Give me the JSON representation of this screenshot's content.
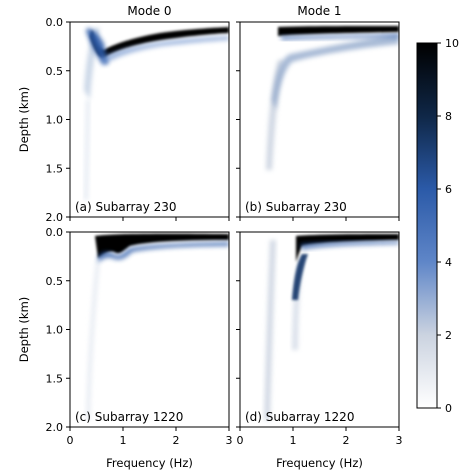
{
  "chart_data": {
    "type": "heatmap",
    "columns": [
      "Mode 0",
      "Mode 1"
    ],
    "xlabel": "Frequency (Hz)",
    "ylabel": "Depth (km)",
    "xlim": [
      0,
      3
    ],
    "ylim": [
      2.0,
      0.0
    ],
    "x_ticks": [
      "0",
      "1",
      "2",
      "3"
    ],
    "y_ticks": [
      "0.0",
      "0.5",
      "1.0",
      "1.5",
      "2.0"
    ],
    "colorbar": {
      "range": [
        0,
        10
      ],
      "ticks": [
        "0",
        "2",
        "4",
        "6",
        "8",
        "10"
      ],
      "colormap": [
        "#ffffff",
        "#cbd3e0",
        "#5f86c8",
        "#2b5aa8",
        "#0f2747",
        "#000000"
      ]
    },
    "panels": [
      {
        "label": "(a) Subarray 230",
        "column": 0,
        "features": [
          {
            "freq_start": 0.55,
            "freq_end": 3.0,
            "depth_start": 0.25,
            "depth_end": 0.07,
            "peak": 10
          },
          {
            "freq": 0.62,
            "depth_min": 0.05,
            "depth_max": 1.7,
            "peak": 6
          }
        ]
      },
      {
        "label": "(b) Subarray 230",
        "column": 1,
        "features": [
          {
            "freq_start": 0.9,
            "freq_end": 3.0,
            "depth_start": 0.08,
            "depth_end": 0.04,
            "peak": 10
          },
          {
            "freq_start": 0.6,
            "freq_end": 3.0,
            "depth_start": 0.35,
            "depth_end": 0.15,
            "peak": 4
          },
          {
            "freq": 0.58,
            "depth_min": 0.2,
            "depth_max": 1.4,
            "peak": 4
          }
        ]
      },
      {
        "label": "(c) Subarray 1220",
        "column": 0,
        "features": [
          {
            "freq_start": 0.55,
            "freq_end": 3.0,
            "depth_start": 0.12,
            "depth_end": 0.07,
            "peak": 10
          },
          {
            "freq": 0.58,
            "depth_min": 0.1,
            "depth_max": 1.8,
            "peak": 2
          }
        ]
      },
      {
        "label": "(d) Subarray 1220",
        "column": 1,
        "features": [
          {
            "freq_start": 1.0,
            "freq_end": 3.0,
            "depth_start": 0.1,
            "depth_end": 0.05,
            "peak": 10
          },
          {
            "freq": 1.0,
            "depth_min": 0.25,
            "depth_max": 1.2,
            "peak": 7
          },
          {
            "freq": 0.55,
            "depth_min": 0.1,
            "depth_max": 1.9,
            "peak": 3
          }
        ]
      }
    ]
  }
}
